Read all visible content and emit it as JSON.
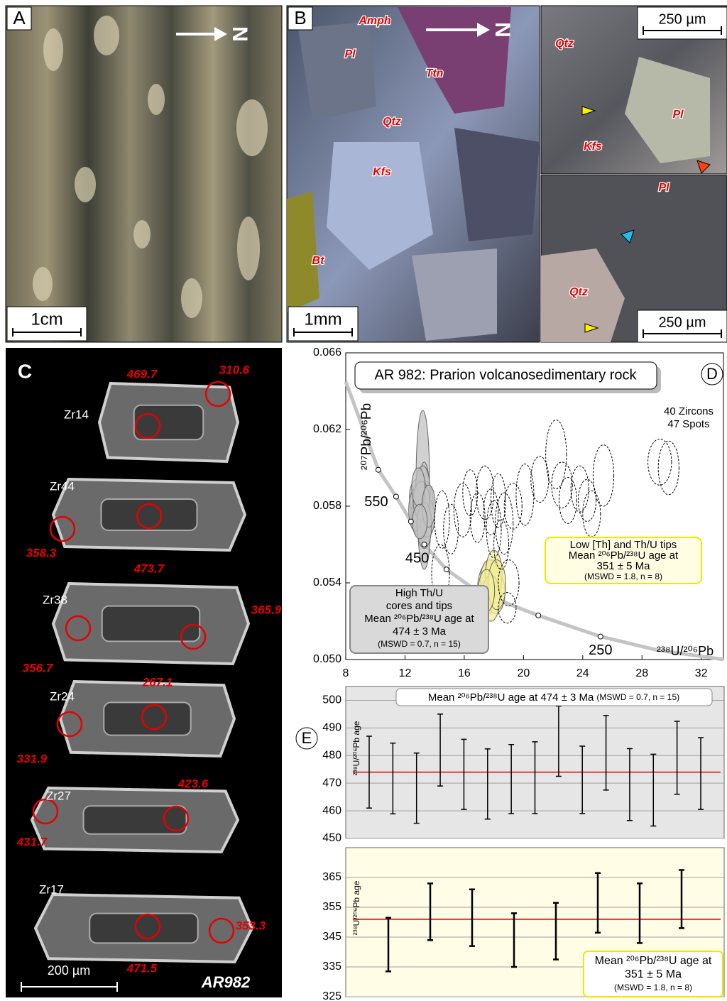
{
  "panels": {
    "a": {
      "label": "A",
      "north": "N",
      "scale": "1cm"
    },
    "b": {
      "label": "B",
      "north": "N",
      "scale": "1mm",
      "minerals": [
        "Amph",
        "Pl",
        "Ttn",
        "Qtz",
        "Kfs",
        "Bt"
      ],
      "inset_top": {
        "scale": "250 µm",
        "minerals": [
          "Qtz",
          "Pl",
          "Kfs"
        ]
      },
      "inset_bottom": {
        "scale": "250 µm",
        "minerals": [
          "Pl",
          "Qtz"
        ]
      }
    },
    "c": {
      "label": "C",
      "scale": "200 µm",
      "sample": "AR982",
      "zircons": [
        {
          "name": "Zr14",
          "ages": [
            "469.7",
            "310.6"
          ]
        },
        {
          "name": "Zr44",
          "ages": [
            "358.3",
            "473.7"
          ]
        },
        {
          "name": "Zr38",
          "ages": [
            "365.9",
            "356.7"
          ]
        },
        {
          "name": "Zr24",
          "ages": [
            "267.1",
            "331.9"
          ]
        },
        {
          "name": "Zr27",
          "ages": [
            "423.6",
            "431.7"
          ]
        },
        {
          "name": "Zr17",
          "ages": [
            "353.3",
            "471.5"
          ]
        }
      ]
    }
  },
  "chart_data": [
    {
      "type": "ellipse",
      "panel": "D",
      "title": "AR 982: Prarion volcanosedimentary rock",
      "xlabel": "²³⁸U/²⁰⁶Pb",
      "ylabel": "²⁰⁷Pb/²⁰⁶Pb",
      "xlim": [
        8,
        33.5
      ],
      "ylim": [
        0.05,
        0.066
      ],
      "xticks": [
        8,
        12,
        16,
        20,
        24,
        28,
        32
      ],
      "yticks": [
        {
          "value": 0.05,
          "label": "0.050"
        },
        {
          "value": 0.054,
          "label": "0.054"
        },
        {
          "value": 0.058,
          "label": "0.058"
        },
        {
          "value": 0.062,
          "label": "0.062"
        },
        {
          "value": 0.066,
          "label": "0.066"
        }
      ],
      "annotations": [
        "40 Zircons",
        "47 Spots"
      ],
      "boxes": [
        {
          "lines": [
            "High Th/U",
            "cores and tips",
            "Mean ²⁰⁶Pb/²³⁸U age at",
            "474 ± 3 Ma",
            "(MSWD = 0.7, n = 15)"
          ],
          "color": "#d9d9d9",
          "border": "#888888"
        },
        {
          "lines": [
            "Low [Th] and Th/U tips",
            "Mean ²⁰⁶Pb/²³⁸U age at",
            "351 ± 5 Ma",
            "(MSWD = 1.8, n = 8)"
          ],
          "color": "#fffde2",
          "border": "#f2e600"
        }
      ],
      "concordia": {
        "color": "#c4c4c4",
        "x": [
          8,
          10.2,
          11.4,
          12.4,
          13.3,
          14.8,
          17,
          21,
          25.2,
          29,
          33.5
        ],
        "y": [
          0.0645,
          0.0599,
          0.0585,
          0.0572,
          0.056,
          0.0547,
          0.0535,
          0.0523,
          0.0512,
          0.0505,
          0.05
        ]
      },
      "concordia_marks": {
        "x": [
          10.2,
          11.4,
          12.4,
          13.3,
          14.8,
          21,
          25.2
        ],
        "y": [
          0.0599,
          0.0585,
          0.0572,
          0.056,
          0.0547,
          0.0523,
          0.0512
        ],
        "labels": [
          null,
          550,
          null,
          450,
          null,
          null,
          250
        ]
      },
      "series": [
        {
          "color": "#c2c2c2",
          "filled": true,
          "dashed": false,
          "x": [
            13.2,
            13.3,
            12.9,
            13.1,
            13.4,
            12.8,
            13.0,
            13.2,
            13.5,
            12.7,
            13.1,
            13.3,
            12.9,
            13.6,
            13.0
          ],
          "y": [
            0.0595,
            0.0575,
            0.058,
            0.0578,
            0.0582,
            0.0585,
            0.0576,
            0.0588,
            0.0574,
            0.0578,
            0.0583,
            0.057,
            0.059,
            0.058,
            0.0572
          ],
          "sx": [
            0.45,
            0.45,
            0.55,
            0.6,
            0.5,
            0.5,
            0.55,
            0.5,
            0.5,
            0.45,
            0.55,
            0.5,
            0.45,
            0.45,
            0.5
          ],
          "sy": [
            0.0035,
            0.0028,
            0.0012,
            0.001,
            0.0011,
            0.0009,
            0.0012,
            0.0013,
            0.001,
            0.0011,
            0.001,
            0.0012,
            0.001,
            0.0011,
            0.0009
          ]
        },
        {
          "color": "#f3ee9a",
          "filled": true,
          "dashed": false,
          "x": [
            17.6,
            17.9,
            18.1,
            17.7,
            18.0,
            17.8,
            18.2,
            17.5
          ],
          "y": [
            0.0537,
            0.054,
            0.0535,
            0.0542,
            0.0545,
            0.0532,
            0.0539,
            0.0536
          ],
          "sx": [
            0.7,
            0.6,
            0.65,
            0.6,
            0.55,
            0.6,
            0.6,
            0.55
          ],
          "sy": [
            0.0013,
            0.0012,
            0.0011,
            0.001,
            0.0012,
            0.0012,
            0.0013,
            0.0011
          ]
        },
        {
          "color": "#000000",
          "filled": false,
          "dashed": true,
          "x": [
            14.5,
            14.4,
            15.1,
            15.9,
            16.4,
            16.9,
            17.4,
            17.8,
            18.3,
            18.0,
            18.5,
            19.0,
            18.9,
            20.1,
            21.1,
            22.2,
            22.6,
            23.0,
            23.8,
            24.3,
            25.4,
            24.6,
            29.2,
            29.8,
            18.7,
            19.3
          ],
          "y": [
            0.0573,
            0.0545,
            0.0568,
            0.0578,
            0.0587,
            0.0574,
            0.0587,
            0.0577,
            0.0583,
            0.0568,
            0.056,
            0.054,
            0.0527,
            0.0586,
            0.0594,
            0.0607,
            0.0591,
            0.0583,
            0.0589,
            0.0583,
            0.0596,
            0.0576,
            0.0603,
            0.06,
            0.0571,
            0.058
          ],
          "sx": [
            0.5,
            0.6,
            0.5,
            0.6,
            0.5,
            0.5,
            0.6,
            0.5,
            0.5,
            0.5,
            0.5,
            0.7,
            0.6,
            0.6,
            0.6,
            0.7,
            0.7,
            0.6,
            0.6,
            0.6,
            0.7,
            0.6,
            0.8,
            0.7,
            0.6,
            0.6
          ],
          "sy": [
            0.0015,
            0.0015,
            0.0013,
            0.0014,
            0.0012,
            0.0013,
            0.0014,
            0.0012,
            0.0014,
            0.0015,
            0.0013,
            0.0012,
            0.0008,
            0.0016,
            0.0012,
            0.0018,
            0.0012,
            0.0012,
            0.0012,
            0.0011,
            0.0016,
            0.0012,
            0.0012,
            0.0014,
            0.0016,
            0.0012
          ]
        }
      ]
    },
    {
      "type": "errorbar",
      "panel": "E",
      "title": "Mean ²⁰⁶Pb/²³⁸U age at 474 ± 3 Ma",
      "subtitle": "(MSWD = 0.7, n = 15)",
      "ylabel": "²³⁸U/²⁰⁶Pb age",
      "ylim": [
        450,
        505
      ],
      "yticks": [
        450,
        460,
        470,
        480,
        490,
        500
      ],
      "grid": true,
      "background": "#e6e6e6",
      "mean": 474,
      "mean_color": "#e00000",
      "values": [
        474,
        471.7,
        468.2,
        482,
        473.2,
        469.7,
        471.5,
        472,
        485.2,
        471.2,
        481,
        469.5,
        467.5,
        479.2,
        473.5
      ],
      "errors": [
        13,
        12.8,
        12.7,
        13,
        12.7,
        12.7,
        12.5,
        13,
        12.7,
        12.2,
        13.5,
        13,
        13,
        13.2,
        13
      ]
    },
    {
      "type": "errorbar",
      "ylabel": "²³⁸U/²⁰⁶Pb age",
      "ylim": [
        325,
        375
      ],
      "yticks": [
        325,
        335,
        345,
        355,
        365
      ],
      "grid": true,
      "background": "#fffde6",
      "mean": 351,
      "mean_color": "#e00000",
      "title_lines": [
        "Mean ²⁰⁶Pb/²³⁸U age at",
        "351 ± 5 Ma",
        "(MSWD = 1.8, n = 8)"
      ],
      "values": [
        342.5,
        353.5,
        351.5,
        344,
        347,
        356.5,
        353,
        357.75
      ],
      "errors": [
        9,
        9.5,
        9.5,
        9,
        9.5,
        10,
        10,
        9.75
      ]
    }
  ]
}
